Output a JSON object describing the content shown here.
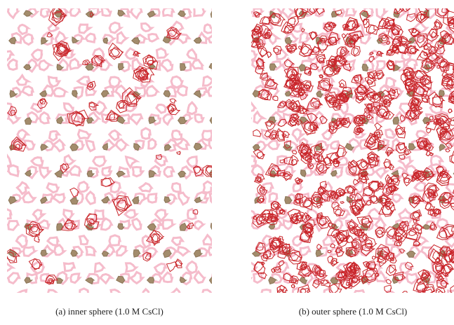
{
  "figure": {
    "panels": [
      {
        "caption": "(a) inner sphere (1.0 M CsCl)"
      },
      {
        "caption": "(b) outer sphere (1.0 M CsCl)"
      }
    ]
  }
}
